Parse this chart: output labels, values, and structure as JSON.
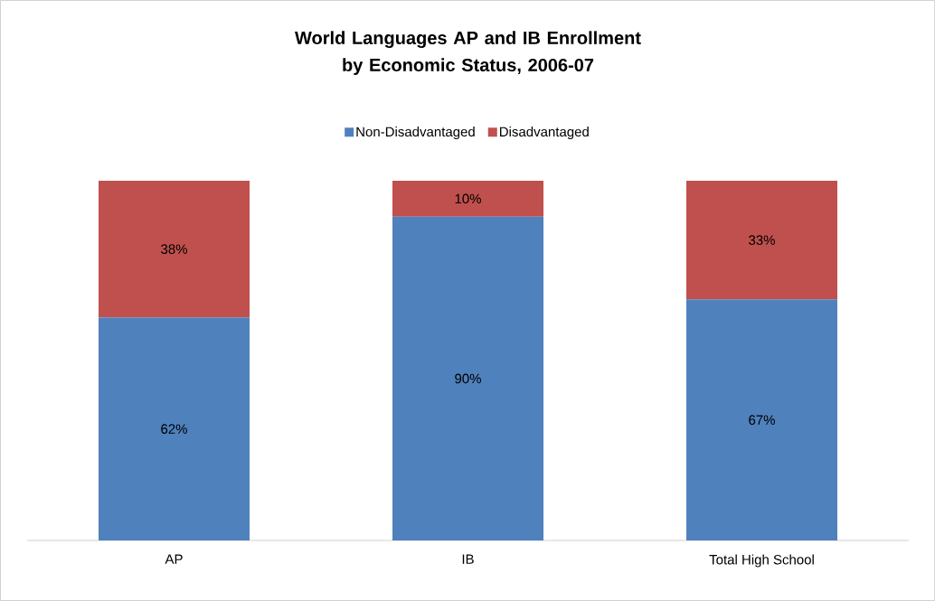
{
  "chart_data": {
    "type": "bar",
    "title": "World Languages AP and IB Enrollment by Economic Status, 2006-07",
    "categories": [
      "AP",
      "IB",
      "Total High School"
    ],
    "series": [
      {
        "name": "Non-Disadvantaged",
        "color": "#4f81bd",
        "values": [
          62,
          90,
          67
        ],
        "value_labels": [
          "62%",
          "90%",
          "67%"
        ]
      },
      {
        "name": "Disadvantaged",
        "color": "#c0504d",
        "values": [
          38,
          10,
          33
        ],
        "value_labels": [
          "38%",
          "10%",
          "33%"
        ]
      }
    ],
    "stacked": true,
    "tick_labels": "x",
    "legend": "top"
  }
}
